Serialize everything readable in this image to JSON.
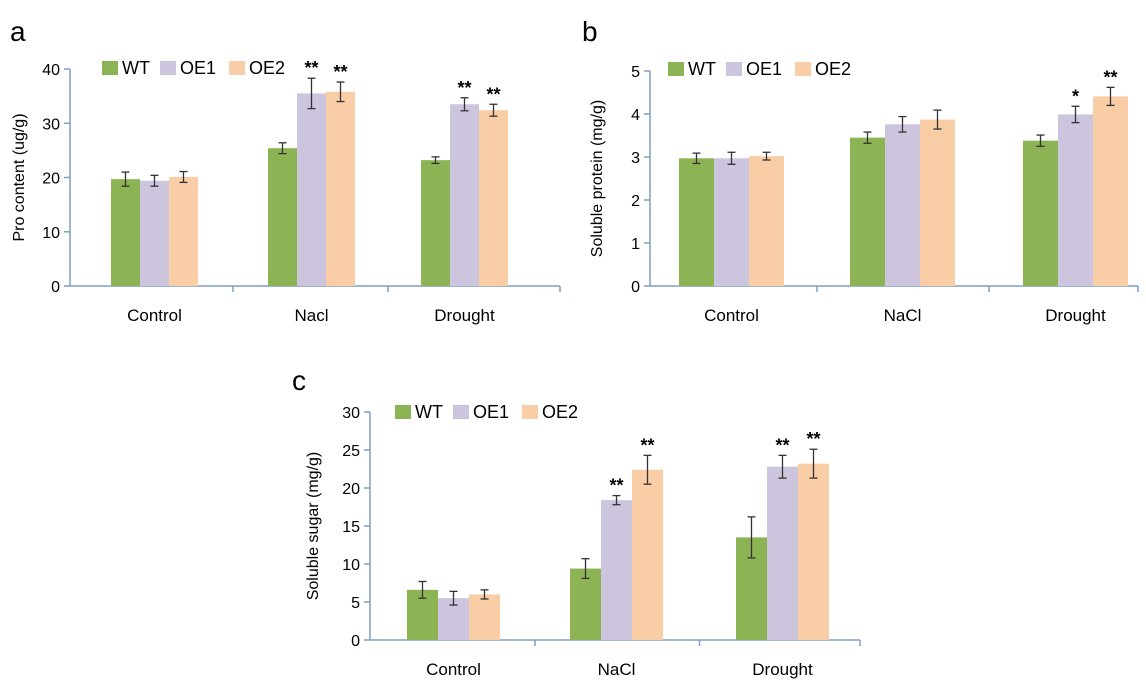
{
  "colors": {
    "WT": "#8db454",
    "OE1": "#cdc4de",
    "OE2": "#f9cda6",
    "axis": "#7f9ec3",
    "error": "#333333"
  },
  "chart_data": [
    {
      "panel": "a",
      "type": "bar",
      "ylabel": "Pro content (ug/g)",
      "xlabel": "",
      "ylim": [
        0,
        40
      ],
      "yticks": [
        0,
        10,
        20,
        30,
        40
      ],
      "categories": [
        "Control",
        "Nacl",
        "Drought"
      ],
      "legend": "top-left",
      "series": [
        {
          "name": "WT",
          "values": [
            19.7,
            25.4,
            23.2
          ],
          "errors": [
            1.3,
            1.0,
            0.6
          ],
          "sig": [
            "",
            "",
            ""
          ]
        },
        {
          "name": "OE1",
          "values": [
            19.4,
            35.5,
            33.5
          ],
          "errors": [
            1.0,
            2.8,
            1.2
          ],
          "sig": [
            "",
            "**",
            "**"
          ]
        },
        {
          "name": "OE2",
          "values": [
            20.1,
            35.8,
            32.4
          ],
          "errors": [
            1.0,
            1.8,
            1.1
          ],
          "sig": [
            "",
            "**",
            "**"
          ]
        }
      ]
    },
    {
      "panel": "b",
      "type": "bar",
      "ylabel": "Soluble protein (mg/g)",
      "xlabel": "",
      "ylim": [
        0,
        5
      ],
      "yticks": [
        0,
        1,
        2,
        3,
        4,
        5
      ],
      "categories": [
        "Control",
        "NaCl",
        "Drought"
      ],
      "legend": "top-left",
      "series": [
        {
          "name": "WT",
          "values": [
            2.97,
            3.45,
            3.38
          ],
          "errors": [
            0.12,
            0.13,
            0.13
          ],
          "sig": [
            "",
            "",
            ""
          ]
        },
        {
          "name": "OE1",
          "values": [
            2.97,
            3.76,
            3.99
          ],
          "errors": [
            0.14,
            0.18,
            0.19
          ],
          "sig": [
            "",
            "",
            "*"
          ]
        },
        {
          "name": "OE2",
          "values": [
            3.02,
            3.87,
            4.41
          ],
          "errors": [
            0.09,
            0.22,
            0.21
          ],
          "sig": [
            "",
            "",
            "**"
          ]
        }
      ]
    },
    {
      "panel": "c",
      "type": "bar",
      "ylabel": "Soluble sugar (mg/g)",
      "xlabel": "",
      "ylim": [
        0,
        30
      ],
      "yticks": [
        0,
        5,
        10,
        15,
        20,
        25,
        30
      ],
      "categories": [
        "Control",
        "NaCl",
        "Drought"
      ],
      "legend": "top-left",
      "series": [
        {
          "name": "WT",
          "values": [
            6.6,
            9.4,
            13.5
          ],
          "errors": [
            1.1,
            1.3,
            2.7
          ],
          "sig": [
            "",
            "",
            ""
          ]
        },
        {
          "name": "OE1",
          "values": [
            5.5,
            18.4,
            22.8
          ],
          "errors": [
            0.9,
            0.6,
            1.5
          ],
          "sig": [
            "",
            "**",
            "**"
          ]
        },
        {
          "name": "OE2",
          "values": [
            6.0,
            22.4,
            23.2
          ],
          "errors": [
            0.6,
            1.9,
            1.9
          ],
          "sig": [
            "",
            "**",
            "**"
          ]
        }
      ]
    }
  ]
}
